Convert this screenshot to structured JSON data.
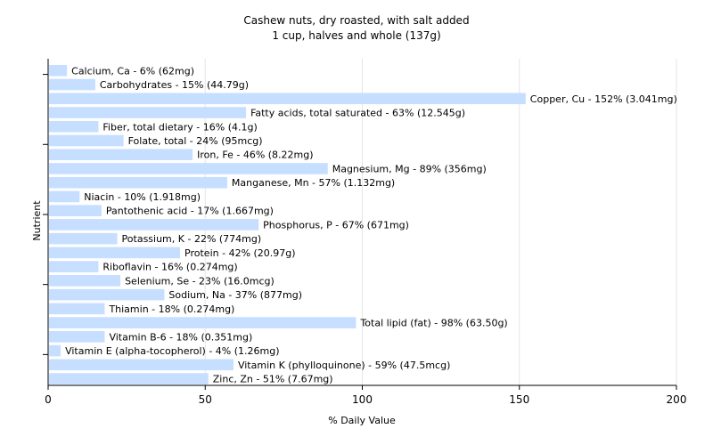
{
  "chart_data": {
    "type": "bar",
    "orientation": "horizontal",
    "title": "Cashew nuts, dry roasted, with salt added",
    "subtitle": "1 cup, halves and whole (137g)",
    "xlabel": "% Daily Value",
    "ylabel": "Nutrient",
    "xlim": [
      0,
      200
    ],
    "xticks": [
      "0",
      "50",
      "100",
      "150",
      "200"
    ],
    "grid": true,
    "bar_color": "#c6deff",
    "categories": [
      "Calcium, Ca",
      "Carbohydrates",
      "Copper, Cu",
      "Fatty acids, total saturated",
      "Fiber, total dietary",
      "Folate, total",
      "Iron, Fe",
      "Magnesium, Mg",
      "Manganese, Mn",
      "Niacin",
      "Pantothenic acid",
      "Phosphorus, P",
      "Potassium, K",
      "Protein",
      "Riboflavin",
      "Selenium, Se",
      "Sodium, Na",
      "Thiamin",
      "Total lipid (fat)",
      "Vitamin B-6",
      "Vitamin E (alpha-tocopherol)",
      "Vitamin K (phylloquinone)",
      "Zinc, Zn"
    ],
    "values": [
      6,
      15,
      152,
      63,
      16,
      24,
      46,
      89,
      57,
      10,
      17,
      67,
      22,
      42,
      16,
      23,
      37,
      18,
      98,
      18,
      4,
      59,
      51
    ],
    "labels": [
      "Calcium, Ca - 6% (62mg)",
      "Carbohydrates - 15% (44.79g)",
      "Copper, Cu - 152% (3.041mg)",
      "Fatty acids, total saturated - 63% (12.545g)",
      "Fiber, total dietary - 16% (4.1g)",
      "Folate, total - 24% (95mcg)",
      "Iron, Fe - 46% (8.22mg)",
      "Magnesium, Mg - 89% (356mg)",
      "Manganese, Mn - 57% (1.132mg)",
      "Niacin - 10% (1.918mg)",
      "Pantothenic acid - 17% (1.667mg)",
      "Phosphorus, P - 67% (671mg)",
      "Potassium, K - 22% (774mg)",
      "Protein - 42% (20.97g)",
      "Riboflavin - 16% (0.274mg)",
      "Selenium, Se - 23% (16.0mcg)",
      "Sodium, Na - 37% (877mg)",
      "Thiamin - 18% (0.274mg)",
      "Total lipid (fat) - 98% (63.50g)",
      "Vitamin B-6 - 18% (0.351mg)",
      "Vitamin E (alpha-tocopherol) - 4% (1.26mg)",
      "Vitamin K (phylloquinone) - 59% (47.5mcg)",
      "Zinc, Zn - 51% (7.67mg)"
    ]
  }
}
